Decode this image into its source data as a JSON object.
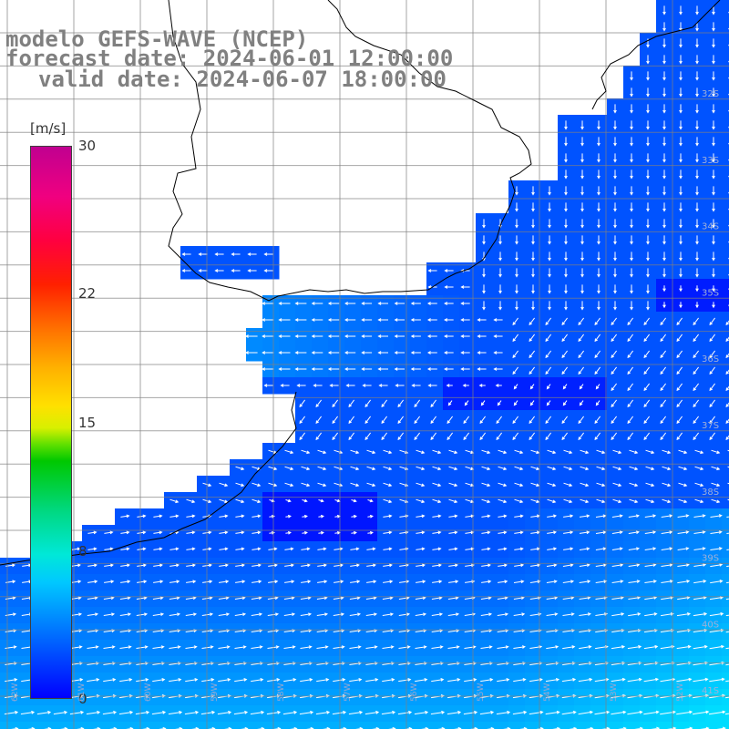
{
  "header": {
    "line1": "modelo GEFS-WAVE (NCEP)",
    "line2": "forecast date: 2024-06-01 12:00:00",
    "line3": "valid date: 2024-06-07 18:00:00"
  },
  "colorbar": {
    "unit": "[m/s]",
    "ticks": [
      {
        "value": 30,
        "label": "30"
      },
      {
        "value": 22,
        "label": "22"
      },
      {
        "value": 15,
        "label": "15"
      },
      {
        "value": 8,
        "label": "8"
      },
      {
        "value": 0,
        "label": "0"
      }
    ],
    "min": 0,
    "max": 30
  },
  "map": {
    "lat_labels": [
      "32S",
      "33S",
      "34S",
      "35S",
      "36S",
      "37S",
      "38S",
      "39S",
      "40S",
      "41S"
    ],
    "lon_labels": [
      "62W",
      "61W",
      "60W",
      "59W",
      "58W",
      "57W",
      "56W",
      "55W",
      "54W",
      "53W",
      "52W"
    ],
    "land_color": "#ffffff",
    "grid_color": "#808080",
    "coast_color": "#000000"
  }
}
